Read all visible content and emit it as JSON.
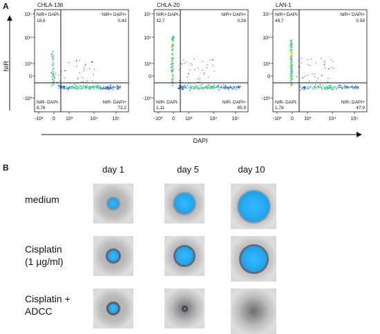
{
  "panel_a": {
    "letter": "A",
    "y_axis_title": "NIR",
    "x_axis_title": "DAPI",
    "y_ticks": [
      "10⁵",
      "10⁴",
      "10³",
      "0",
      "-10³"
    ],
    "x_ticks": [
      "-10³",
      "0",
      "10³",
      "10⁴",
      "10⁵"
    ],
    "plots": [
      {
        "title": "CHLA-136",
        "q_ul_label": "NIR+ DAPI-",
        "q_ul": "18,6",
        "q_ur_label": "NIR+ DAPI+",
        "q_ur": "0,43",
        "q_ll_label": "NIR- DAPI-",
        "q_ll": "8,76",
        "q_lr_label": "NIR- DAPI+",
        "q_lr": "72,2"
      },
      {
        "title": "CHLA-20",
        "q_ul_label": "NIR+ DAPI-",
        "q_ul": "32,7",
        "q_ur_label": "NIR+ DAPI+",
        "q_ur": "0,28",
        "q_ll_label": "NIR- DAPI-",
        "q_ll": "1,11",
        "q_lr_label": "NIR- DAPI+",
        "q_lr": "65,9"
      },
      {
        "title": "LAN-1",
        "q_ul_label": "NIR+ DAPI-",
        "q_ul": "49,7",
        "q_ur_label": "NIR+ DAPI+",
        "q_ur": "0,58",
        "q_ll_label": "NIR- DAPI-",
        "q_ll": "1,78",
        "q_lr_label": "NIR- DAPI+",
        "q_lr": "47,9"
      }
    ]
  },
  "panel_b": {
    "letter": "B",
    "days": [
      "day 1",
      "day 5",
      "day 10"
    ],
    "rows": [
      {
        "label_lines": [
          "medium"
        ],
        "spheroid_size": [
          0.35,
          0.65,
          0.85
        ],
        "disrupted": [
          false,
          false,
          false
        ]
      },
      {
        "label_lines": [
          "Cisplatin",
          "(1 µg/ml)"
        ],
        "spheroid_size": [
          0.35,
          0.55,
          0.7
        ],
        "disrupted": [
          false,
          false,
          false
        ]
      },
      {
        "label_lines": [
          "Cisplatin +",
          "ADCC"
        ],
        "spheroid_size": [
          0.3,
          0.05,
          0.0
        ],
        "disrupted": [
          false,
          true,
          true
        ]
      }
    ]
  },
  "colors": {
    "spheroid": "#1ea8f0",
    "well": "#b9b9b9"
  }
}
